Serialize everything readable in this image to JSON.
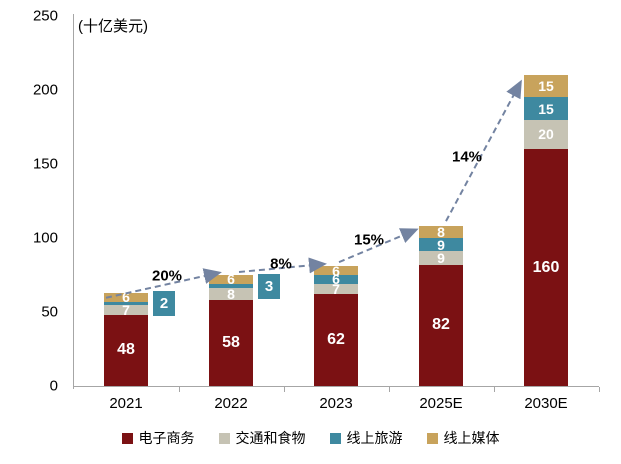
{
  "unit_label": "(十亿美元)",
  "chart_data": {
    "type": "bar",
    "stacked": true,
    "title": "",
    "unit": "(十亿美元)",
    "categories": [
      "2021",
      "2022",
      "2023",
      "2025E",
      "2030E"
    ],
    "series": [
      {
        "key": "ecommerce",
        "name": "电子商务",
        "color": "#7B1113",
        "values": [
          48,
          58,
          62,
          82,
          160
        ]
      },
      {
        "key": "transport-food",
        "name": "交通和食物",
        "color": "#C6C3B4",
        "values": [
          7,
          8,
          7,
          9,
          20
        ]
      },
      {
        "key": "online-travel",
        "name": "线上旅游",
        "color": "#3E89A0",
        "values": [
          2,
          3,
          6,
          9,
          15
        ],
        "callout_indices": [
          0,
          1
        ]
      },
      {
        "key": "online-media",
        "name": "线上媒体",
        "color": "#C8A35C",
        "values": [
          6,
          6,
          6,
          8,
          15
        ]
      }
    ],
    "totals": [
      63,
      75,
      81,
      108,
      210
    ],
    "growth_labels": [
      "20%",
      "8%",
      "15%",
      "14%"
    ],
    "ylim": [
      0,
      250
    ],
    "yticks": [
      0,
      50,
      100,
      150,
      200,
      250
    ],
    "grid": false,
    "legend_position": "bottom",
    "colors": {
      "arrow": "#7383A1",
      "axis": "#A6A6A6",
      "bar_label_text": "#FFFFFF",
      "growth_label_text": "#000000"
    }
  }
}
